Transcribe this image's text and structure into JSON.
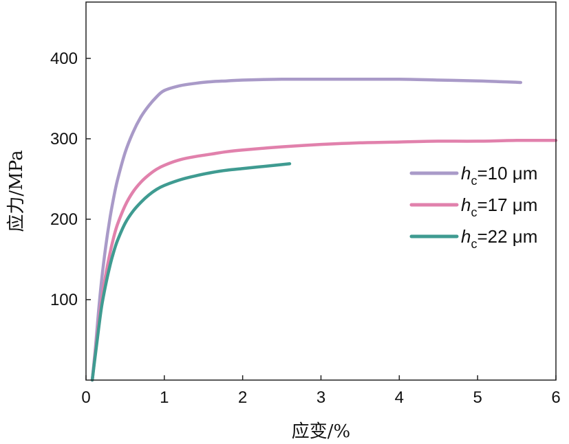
{
  "chart_data": {
    "type": "line",
    "xlabel": "应变/%",
    "ylabel": "应力/MPa",
    "xlim": [
      0,
      6
    ],
    "ylim": [
      0,
      470
    ],
    "xticks": [
      0,
      1,
      2,
      3,
      4,
      5,
      6
    ],
    "yticks": [
      100,
      200,
      300,
      400
    ],
    "grid": false,
    "legend_position": "center-right",
    "series": [
      {
        "name_italic": "h",
        "name_sub": "c",
        "name_rest": "=10 μm",
        "color": "#a99ac8",
        "x": [
          0.08,
          0.12,
          0.16,
          0.2,
          0.25,
          0.3,
          0.35,
          0.4,
          0.5,
          0.6,
          0.7,
          0.8,
          0.9,
          1.0,
          1.2,
          1.4,
          1.6,
          1.8,
          2.0,
          2.5,
          3.0,
          3.5,
          4.0,
          4.5,
          5.0,
          5.3,
          5.55
        ],
        "y": [
          0,
          40,
          85,
          125,
          165,
          198,
          225,
          248,
          283,
          308,
          327,
          341,
          352,
          360,
          366,
          369,
          371,
          372,
          373,
          374,
          374,
          374,
          374,
          373,
          372,
          371,
          370
        ]
      },
      {
        "name_italic": "h",
        "name_sub": "c",
        "name_rest": "=17 μm",
        "color": "#e181ac",
        "x": [
          0.08,
          0.12,
          0.16,
          0.2,
          0.25,
          0.3,
          0.35,
          0.4,
          0.5,
          0.6,
          0.7,
          0.8,
          0.9,
          1.0,
          1.2,
          1.4,
          1.6,
          1.8,
          2.0,
          2.5,
          3.0,
          3.5,
          4.0,
          4.5,
          5.0,
          5.5,
          6.0
        ],
        "y": [
          0,
          35,
          70,
          100,
          130,
          155,
          176,
          193,
          217,
          234,
          246,
          255,
          262,
          267,
          274,
          278,
          281,
          284,
          286,
          290,
          293,
          295,
          296,
          297,
          297,
          298,
          298
        ]
      },
      {
        "name_italic": "h",
        "name_sub": "c",
        "name_rest": "=22 μm",
        "color": "#3f9b91",
        "x": [
          0.08,
          0.12,
          0.16,
          0.2,
          0.25,
          0.3,
          0.35,
          0.4,
          0.5,
          0.6,
          0.7,
          0.8,
          0.9,
          1.0,
          1.2,
          1.4,
          1.6,
          1.8,
          2.0,
          2.2,
          2.4,
          2.6
        ],
        "y": [
          0,
          32,
          63,
          92,
          118,
          140,
          158,
          173,
          195,
          210,
          221,
          230,
          237,
          242,
          249,
          254,
          258,
          261,
          263,
          265,
          267,
          269
        ]
      }
    ]
  }
}
